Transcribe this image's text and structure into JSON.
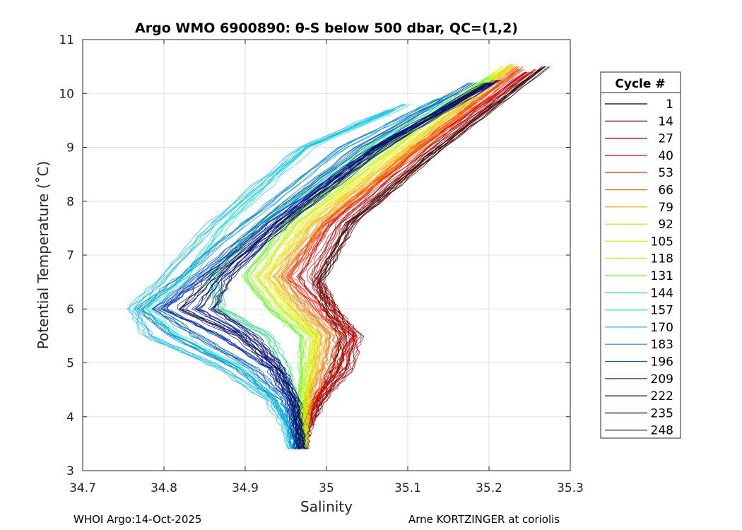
{
  "chart_data": {
    "type": "line",
    "title": "Argo WMO 6900890: θ-S below 500 dbar,  QC=(1,2)",
    "xlabel": "Salinity",
    "ylabel": "Potential Temperature (˚C)",
    "xlim": [
      34.7,
      35.3
    ],
    "ylim": [
      3,
      11
    ],
    "xticks": [
      "34.7",
      "34.8",
      "34.9",
      "35",
      "35.1",
      "35.2",
      "35.3"
    ],
    "yticks": [
      "3",
      "4",
      "5",
      "6",
      "7",
      "8",
      "9",
      "10",
      "11"
    ],
    "grid": true,
    "legend": {
      "title": "Cycle #",
      "placement": "right-outside",
      "entries": [
        "1",
        "14",
        "27",
        "40",
        "53",
        "66",
        "79",
        "92",
        "105",
        "118",
        "131",
        "144",
        "157",
        "170",
        "183",
        "196",
        "209",
        "222",
        "235",
        "248"
      ],
      "colors": [
        "#000000",
        "#6f0000",
        "#b00000",
        "#e00000",
        "#ff2200",
        "#ff6600",
        "#ff9a00",
        "#ffcc00",
        "#e8f000",
        "#b4ff00",
        "#60ff20",
        "#20e080",
        "#10e0d0",
        "#10c0f0",
        "#0090e0",
        "#0060c8",
        "#0030b0",
        "#001a90",
        "#000e70",
        "#000858"
      ]
    },
    "series": [
      {
        "name": "1",
        "x": [
          34.97,
          34.975,
          34.99,
          35.01,
          35.02,
          35.0,
          34.99,
          35.03,
          35.14,
          35.27
        ],
        "y": [
          3.4,
          3.8,
          4.3,
          4.9,
          5.5,
          6.0,
          6.5,
          7.6,
          9.0,
          10.5
        ]
      },
      {
        "name": "14",
        "x": [
          34.97,
          34.975,
          34.99,
          35.02,
          35.03,
          35.01,
          34.99,
          35.03,
          35.14,
          35.26
        ],
        "y": [
          3.4,
          3.8,
          4.3,
          4.9,
          5.5,
          6.0,
          6.5,
          7.6,
          9.0,
          10.45
        ]
      },
      {
        "name": "27",
        "x": [
          34.97,
          34.978,
          34.995,
          35.03,
          35.04,
          35.01,
          34.985,
          35.02,
          35.13,
          35.25
        ],
        "y": [
          3.4,
          3.8,
          4.3,
          4.9,
          5.5,
          6.0,
          6.6,
          7.6,
          9.0,
          10.4
        ]
      },
      {
        "name": "40",
        "x": [
          34.97,
          34.976,
          34.99,
          35.02,
          35.035,
          35.0,
          34.97,
          35.01,
          35.12,
          35.25
        ],
        "y": [
          3.4,
          3.8,
          4.3,
          4.9,
          5.5,
          6.0,
          6.6,
          7.6,
          9.0,
          10.4
        ]
      },
      {
        "name": "53",
        "x": [
          34.97,
          34.975,
          34.985,
          35.01,
          35.02,
          34.99,
          34.955,
          35.0,
          35.11,
          35.24
        ],
        "y": [
          3.4,
          3.8,
          4.3,
          4.9,
          5.5,
          6.0,
          6.6,
          7.6,
          9.0,
          10.45
        ]
      },
      {
        "name": "66",
        "x": [
          34.97,
          34.974,
          34.98,
          35.0,
          35.01,
          34.98,
          34.95,
          35.0,
          35.12,
          35.24
        ],
        "y": [
          3.4,
          3.8,
          4.3,
          4.9,
          5.5,
          6.0,
          6.6,
          7.6,
          9.0,
          10.5
        ]
      },
      {
        "name": "79",
        "x": [
          34.97,
          34.973,
          34.978,
          34.99,
          35.0,
          34.97,
          34.94,
          34.99,
          35.11,
          35.23
        ],
        "y": [
          3.4,
          3.8,
          4.3,
          4.9,
          5.5,
          6.0,
          6.6,
          7.6,
          9.0,
          10.5
        ]
      },
      {
        "name": "92",
        "x": [
          34.97,
          34.972,
          34.975,
          34.985,
          34.99,
          34.96,
          34.93,
          34.98,
          35.1,
          35.23
        ],
        "y": [
          3.4,
          3.8,
          4.3,
          4.9,
          5.5,
          6.0,
          6.6,
          7.6,
          9.0,
          10.55
        ]
      },
      {
        "name": "105",
        "x": [
          34.97,
          34.972,
          34.972,
          34.98,
          34.985,
          34.95,
          34.92,
          34.97,
          35.09,
          35.22
        ],
        "y": [
          3.4,
          3.8,
          4.3,
          4.9,
          5.5,
          6.0,
          6.6,
          7.6,
          9.0,
          10.5
        ]
      },
      {
        "name": "118",
        "x": [
          34.97,
          34.971,
          34.97,
          34.975,
          34.98,
          34.94,
          34.91,
          34.96,
          35.08,
          35.21
        ],
        "y": [
          3.4,
          3.8,
          4.3,
          4.9,
          5.5,
          6.0,
          6.6,
          7.6,
          9.0,
          10.4
        ]
      },
      {
        "name": "131",
        "x": [
          34.97,
          34.97,
          34.968,
          34.97,
          34.97,
          34.93,
          34.9,
          34.95,
          35.07,
          35.2
        ],
        "y": [
          3.4,
          3.8,
          4.3,
          4.9,
          5.5,
          6.0,
          6.6,
          7.6,
          9.0,
          10.3
        ]
      },
      {
        "name": "144",
        "x": [
          34.965,
          34.965,
          34.96,
          34.95,
          34.93,
          34.87,
          34.86,
          34.92,
          35.05,
          35.16
        ],
        "y": [
          3.4,
          3.8,
          4.3,
          4.9,
          5.5,
          6.0,
          6.6,
          7.6,
          9.0,
          10.0
        ]
      },
      {
        "name": "157",
        "x": [
          34.96,
          34.955,
          34.94,
          34.9,
          34.82,
          34.78,
          34.83,
          34.88,
          34.98,
          35.1
        ],
        "y": [
          3.4,
          3.8,
          4.3,
          4.9,
          5.5,
          6.0,
          6.6,
          7.6,
          9.0,
          9.8
        ]
      },
      {
        "name": "170",
        "x": [
          34.96,
          34.95,
          34.93,
          34.87,
          34.78,
          34.76,
          34.8,
          34.86,
          34.97,
          35.08
        ],
        "y": [
          3.4,
          3.8,
          4.3,
          4.9,
          5.5,
          6.0,
          6.6,
          7.6,
          9.0,
          9.7
        ]
      },
      {
        "name": "183",
        "x": [
          34.96,
          34.955,
          34.94,
          34.89,
          34.81,
          34.77,
          34.82,
          34.9,
          35.02,
          35.14
        ],
        "y": [
          3.4,
          3.8,
          4.3,
          4.9,
          5.5,
          6.0,
          6.6,
          7.6,
          9.0,
          9.9
        ]
      },
      {
        "name": "196",
        "x": [
          34.965,
          34.96,
          34.95,
          34.91,
          34.84,
          34.79,
          34.84,
          34.92,
          35.04,
          35.18
        ],
        "y": [
          3.4,
          3.8,
          4.3,
          4.9,
          5.5,
          6.0,
          6.6,
          7.6,
          9.0,
          10.2
        ]
      },
      {
        "name": "209",
        "x": [
          34.965,
          34.962,
          34.955,
          34.93,
          34.87,
          34.8,
          34.85,
          34.93,
          35.06,
          35.2
        ],
        "y": [
          3.4,
          3.8,
          4.3,
          4.9,
          5.5,
          6.0,
          6.6,
          7.6,
          9.0,
          10.2
        ]
      },
      {
        "name": "222",
        "x": [
          34.97,
          34.965,
          34.96,
          34.94,
          34.9,
          34.84,
          34.87,
          34.94,
          35.06,
          35.2
        ],
        "y": [
          3.4,
          3.8,
          4.3,
          4.9,
          5.5,
          6.0,
          6.6,
          7.6,
          9.0,
          10.2
        ]
      },
      {
        "name": "235",
        "x": [
          34.97,
          34.966,
          34.962,
          34.945,
          34.91,
          34.86,
          34.88,
          34.95,
          35.07,
          35.21
        ],
        "y": [
          3.4,
          3.8,
          4.3,
          4.9,
          5.5,
          6.0,
          6.6,
          7.6,
          9.0,
          10.25
        ]
      },
      {
        "name": "248",
        "x": [
          34.968,
          34.964,
          34.958,
          34.935,
          34.89,
          34.82,
          34.86,
          34.94,
          35.06,
          35.2
        ],
        "y": [
          3.4,
          3.8,
          4.3,
          4.9,
          5.5,
          6.0,
          6.6,
          7.6,
          9.0,
          10.2
        ]
      }
    ]
  },
  "footer": {
    "left": "WHOI Argo:14-Oct-2025",
    "right": "Arne KORTZINGER at coriolis"
  }
}
